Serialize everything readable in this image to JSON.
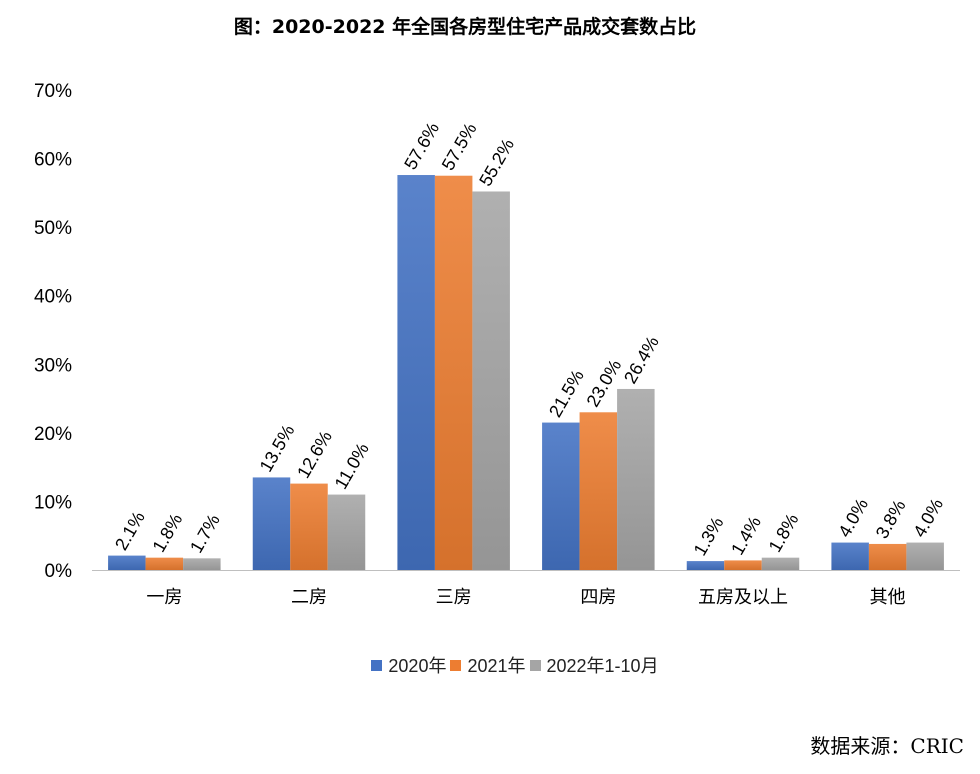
{
  "title": "图：2020-2022 年全国各房型住宅产品成交套数占比",
  "source": "数据来源：CRIC",
  "colors": {
    "series": [
      "#4472C4",
      "#ED7D31",
      "#A5A5A5"
    ],
    "axis": "#bfbfbf",
    "text": "#000000"
  },
  "chart_data": {
    "type": "bar",
    "title": "图：2020-2022 年全国各房型住宅产品成交套数占比",
    "xlabel": "",
    "ylabel": "",
    "ylim": [
      0,
      70
    ],
    "yticks": [
      "0%",
      "10%",
      "20%",
      "30%",
      "40%",
      "50%",
      "60%",
      "70%"
    ],
    "ytick_values": [
      0,
      10,
      20,
      30,
      40,
      50,
      60,
      70
    ],
    "grid": false,
    "legend_position": "bottom",
    "categories": [
      "一房",
      "二房",
      "三房",
      "四房",
      "五房及以上",
      "其他"
    ],
    "series": [
      {
        "name": "2020年",
        "values": [
          2.1,
          13.5,
          57.6,
          21.5,
          1.3,
          4.0
        ],
        "labels": [
          "2.1%",
          "13.5%",
          "57.6%",
          "21.5%",
          "1.3%",
          "4.0%"
        ]
      },
      {
        "name": "2021年",
        "values": [
          1.8,
          12.6,
          57.5,
          23.0,
          1.4,
          3.8
        ],
        "labels": [
          "1.8%",
          "12.6%",
          "57.5%",
          "23.0%",
          "1.4%",
          "3.8%"
        ]
      },
      {
        "name": "2022年1-10月",
        "values": [
          1.7,
          11.0,
          55.2,
          26.4,
          1.8,
          4.0
        ],
        "labels": [
          "1.7%",
          "11.0%",
          "55.2%",
          "26.4%",
          "1.8%",
          "4.0%"
        ]
      }
    ]
  }
}
